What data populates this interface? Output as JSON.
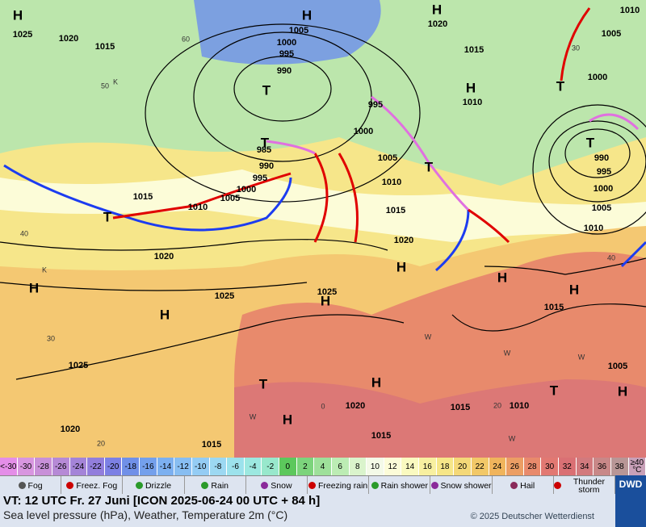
{
  "map": {
    "pressure_labels": [
      "1025",
      "1020",
      "1015",
      "1005",
      "1000",
      "995",
      "990",
      "1020",
      "1015",
      "1010",
      "995",
      "1000",
      "1005",
      "1010",
      "1015",
      "1020",
      "985",
      "990",
      "995",
      "1000",
      "1005",
      "1010",
      "1015",
      "1020",
      "1025",
      "1025",
      "1025",
      "1020",
      "1015",
      "1020",
      "1015",
      "1015",
      "1010",
      "1015",
      "1005",
      "1010",
      "1005",
      "1000",
      "995",
      "990",
      "1000",
      "1005",
      "1010"
    ],
    "temperature_labels": [
      "60",
      "50",
      "40",
      "30",
      "20",
      "0",
      "20",
      "40",
      "30"
    ],
    "marks": [
      "K",
      "K",
      "W",
      "W",
      "W",
      "W",
      "W"
    ],
    "highs": [
      "H",
      "H",
      "H",
      "H",
      "H",
      "H",
      "H",
      "H",
      "H",
      "H",
      "H",
      "H",
      "H"
    ],
    "lows": [
      "T",
      "T",
      "T",
      "T",
      "T",
      "T",
      "T",
      "T"
    ]
  },
  "scale": [
    {
      "label": "<-30",
      "color": "#e48ee8"
    },
    {
      "label": -30,
      "color": "#d896e0"
    },
    {
      "label": -28,
      "color": "#c890d8"
    },
    {
      "label": -26,
      "color": "#b68ad6"
    },
    {
      "label": -24,
      "color": "#a484d8"
    },
    {
      "label": -22,
      "color": "#927edc"
    },
    {
      "label": -20,
      "color": "#7c80e4"
    },
    {
      "label": -18,
      "color": "#7090e8"
    },
    {
      "label": -16,
      "color": "#74a0ec"
    },
    {
      "label": -14,
      "color": "#7cb0f0"
    },
    {
      "label": -12,
      "color": "#88bef2"
    },
    {
      "label": -10,
      "color": "#94ccf4"
    },
    {
      "label": -8,
      "color": "#9cd8f2"
    },
    {
      "label": -6,
      "color": "#9ce2ec"
    },
    {
      "label": -4,
      "color": "#9ce8e0"
    },
    {
      "label": -2,
      "color": "#98e8cc"
    },
    {
      "label": 0,
      "color": "#5cc85c"
    },
    {
      "label": 2,
      "color": "#7cd47c"
    },
    {
      "label": 4,
      "color": "#9ee09a"
    },
    {
      "label": 6,
      "color": "#bcecb4"
    },
    {
      "label": 8,
      "color": "#daf4cc"
    },
    {
      "label": 10,
      "color": "#f4fae8"
    },
    {
      "label": 12,
      "color": "#fcfcd8"
    },
    {
      "label": 14,
      "color": "#fafac0"
    },
    {
      "label": 16,
      "color": "#f8f0a0"
    },
    {
      "label": 18,
      "color": "#f6e688"
    },
    {
      "label": 20,
      "color": "#f4d878"
    },
    {
      "label": 22,
      "color": "#f2c868"
    },
    {
      "label": 24,
      "color": "#f0b45c"
    },
    {
      "label": 26,
      "color": "#ec9e64"
    },
    {
      "label": 28,
      "color": "#e88a6c"
    },
    {
      "label": 30,
      "color": "#e27872"
    },
    {
      "label": 32,
      "color": "#da7074"
    },
    {
      "label": 34,
      "color": "#d27a7e"
    },
    {
      "label": 36,
      "color": "#c88888"
    },
    {
      "label": 38,
      "color": "#b89696"
    },
    {
      "label": "≥40 °C",
      "color": "#c8a0b8"
    }
  ],
  "legend": [
    "Fog",
    "Freez. Fog",
    "Drizzle",
    "Rain",
    "Snow",
    "Freezing rain",
    "Rain shower",
    "Snow shower",
    "Hail",
    "Thunder storm"
  ],
  "footer": {
    "valid_time": "VT: 12 UTC Fr.  27 Juni [ICON 2025-06-24  00 UTC + 84 h]",
    "description": "Sea level pressure (hPa), Weather, Temperature 2m (°C)",
    "copyright": "© 2025 Deutscher Wetterdienst",
    "logo": "DWD"
  }
}
